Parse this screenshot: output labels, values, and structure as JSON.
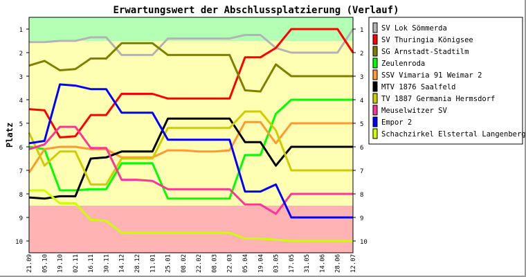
{
  "chart_data": {
    "type": "line",
    "title": "Erwartungswert der Abschlussplatzierung (Verlauf)",
    "ylabel": "Platz",
    "xlabel": "",
    "ylim": [
      0.5,
      10.5
    ],
    "y_inverted": true,
    "yticks": [
      "1",
      "2",
      "3",
      "4",
      "5",
      "6",
      "7",
      "8",
      "9",
      "10"
    ],
    "grid": false,
    "legend_position": "right",
    "zones": [
      {
        "from": 0.5,
        "to": 1.5,
        "color": "#b3ffb3"
      },
      {
        "from": 1.5,
        "to": 8.5,
        "color": "#ffffb3"
      },
      {
        "from": 8.5,
        "to": 10.5,
        "color": "#ffb3b3"
      }
    ],
    "x": [
      "21.09",
      "05.10",
      "19.10",
      "02.11",
      "16.11",
      "30.11",
      "14.12",
      "28.12",
      "11.01",
      "25.01",
      "08.02",
      "22.02",
      "08.03",
      "22.03",
      "05.04",
      "19.04",
      "03.05",
      "17.05",
      "31.05",
      "14.06",
      "28.06",
      "12.07"
    ],
    "series": [
      {
        "name": "SV Lok Sömmerda",
        "color": "#b3b3b3",
        "values": [
          1.55,
          1.55,
          1.5,
          1.5,
          1.35,
          1.35,
          2.1,
          2.1,
          2.1,
          1.4,
          1.4,
          1.4,
          1.4,
          1.4,
          1.25,
          1.25,
          1.8,
          2,
          2,
          2,
          2,
          1
        ]
      },
      {
        "name": "SV Thuringia Königsee",
        "color": "#ff0000",
        "values": [
          4.4,
          4.45,
          5.6,
          5.55,
          4.65,
          4.65,
          3.75,
          3.75,
          3.75,
          3.95,
          3.95,
          3.95,
          3.95,
          3.95,
          2.2,
          2.2,
          1.8,
          1,
          1,
          1,
          1,
          2
        ]
      },
      {
        "name": "SG Arnstadt-Stadtilm",
        "color": "#808000",
        "values": [
          2.55,
          2.35,
          2.75,
          2.7,
          2.25,
          2.25,
          1.6,
          1.6,
          1.6,
          2.1,
          2.1,
          2.1,
          2.1,
          2.1,
          3.6,
          3.65,
          2.5,
          3,
          3,
          3,
          3,
          3
        ]
      },
      {
        "name": "Zeulenroda",
        "color": "#00ff00",
        "values": [
          6.0,
          6.1,
          7.85,
          7.85,
          7.8,
          7.8,
          6.7,
          6.7,
          6.7,
          8.2,
          8.2,
          8.2,
          8.2,
          8.2,
          6.35,
          6.35,
          4.6,
          4,
          4,
          4,
          4,
          4
        ]
      },
      {
        "name": "SSV Vimaria 91 Weimar 2",
        "color": "#ff9933",
        "values": [
          7.1,
          6.1,
          6.0,
          6.0,
          6.1,
          6.1,
          6.45,
          6.45,
          6.45,
          6.15,
          6.15,
          6.2,
          6.2,
          6.15,
          4.95,
          4.95,
          5.85,
          5,
          5,
          5,
          5,
          5
        ]
      },
      {
        "name": "MTV 1876 Saalfeld",
        "color": "#000000",
        "values": [
          8.15,
          8.2,
          8.1,
          8.1,
          6.5,
          6.45,
          6.2,
          6.2,
          6.2,
          4.8,
          4.8,
          4.8,
          4.8,
          4.8,
          5.8,
          5.8,
          6.8,
          6,
          6,
          6,
          6,
          6
        ]
      },
      {
        "name": "TV 1887 Germania Hermsdorf",
        "color": "#cccc00",
        "values": [
          5.4,
          6.8,
          6.2,
          6.2,
          7.6,
          7.6,
          6.5,
          6.5,
          6.5,
          5.2,
          5.2,
          5.2,
          5.2,
          5.2,
          4.5,
          4.5,
          5.3,
          7,
          7,
          7,
          7,
          7
        ]
      },
      {
        "name": "Meuselwitzer SV",
        "color": "#ff3399",
        "values": [
          6.1,
          5.9,
          5.15,
          5.15,
          6.05,
          6.05,
          7.4,
          7.4,
          7.45,
          7.8,
          7.8,
          7.8,
          7.8,
          7.8,
          8.45,
          8.45,
          8.85,
          8,
          8,
          8,
          8,
          8
        ]
      },
      {
        "name": "Empor 2",
        "color": "#0000ff",
        "values": [
          5.85,
          5.75,
          3.35,
          3.4,
          3.55,
          3.55,
          4.55,
          4.55,
          4.55,
          5.7,
          5.7,
          5.7,
          5.7,
          5.7,
          7.9,
          7.9,
          7.6,
          9,
          9,
          9,
          9,
          9
        ]
      },
      {
        "name": "Schachzirkel Elstertal Langenberg",
        "color": "#ccff00",
        "values": [
          7.85,
          7.85,
          8.4,
          8.4,
          9.1,
          9.15,
          9.65,
          9.65,
          9.65,
          9.65,
          9.65,
          9.65,
          9.65,
          9.65,
          9.9,
          9.9,
          9.95,
          10,
          10,
          10,
          10,
          10
        ]
      }
    ]
  }
}
